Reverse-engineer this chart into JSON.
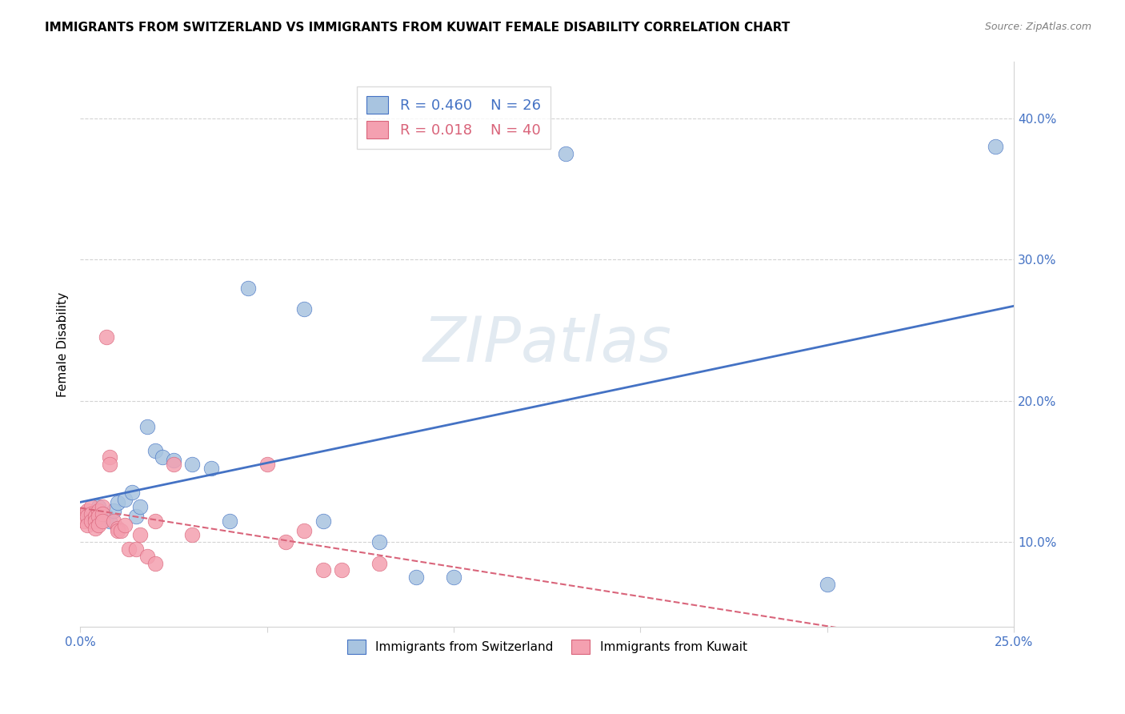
{
  "title": "IMMIGRANTS FROM SWITZERLAND VS IMMIGRANTS FROM KUWAIT FEMALE DISABILITY CORRELATION CHART",
  "source": "Source: ZipAtlas.com",
  "ylabel": "Female Disability",
  "xmin": 0.0,
  "xmax": 0.25,
  "ymin": 0.04,
  "ymax": 0.44,
  "yticks": [
    0.1,
    0.2,
    0.3,
    0.4
  ],
  "ytick_labels": [
    "10.0%",
    "20.0%",
    "30.0%",
    "40.0%"
  ],
  "xticks": [
    0.0,
    0.05,
    0.1,
    0.15,
    0.2,
    0.25
  ],
  "xtick_labels": [
    "0.0%",
    "",
    "",
    "",
    "",
    "25.0%"
  ],
  "color_swiss": "#a8c4e0",
  "color_kuwait": "#f4a0b0",
  "color_swiss_line": "#4472c4",
  "color_kuwait_line": "#d9647a",
  "watermark": "ZIPatlas",
  "swiss_x": [
    0.002,
    0.005,
    0.007,
    0.008,
    0.009,
    0.01,
    0.012,
    0.014,
    0.015,
    0.016,
    0.018,
    0.02,
    0.022,
    0.025,
    0.03,
    0.035,
    0.04,
    0.045,
    0.06,
    0.065,
    0.08,
    0.09,
    0.1,
    0.13,
    0.2,
    0.245
  ],
  "swiss_y": [
    0.12,
    0.125,
    0.118,
    0.115,
    0.122,
    0.128,
    0.13,
    0.135,
    0.118,
    0.125,
    0.182,
    0.165,
    0.16,
    0.158,
    0.155,
    0.152,
    0.115,
    0.28,
    0.265,
    0.115,
    0.1,
    0.075,
    0.075,
    0.375,
    0.07,
    0.38
  ],
  "kuwait_x": [
    0.001,
    0.001,
    0.001,
    0.002,
    0.002,
    0.002,
    0.003,
    0.003,
    0.003,
    0.004,
    0.004,
    0.004,
    0.005,
    0.005,
    0.005,
    0.006,
    0.006,
    0.006,
    0.007,
    0.008,
    0.008,
    0.009,
    0.01,
    0.01,
    0.011,
    0.012,
    0.013,
    0.015,
    0.016,
    0.018,
    0.02,
    0.02,
    0.025,
    0.03,
    0.05,
    0.055,
    0.06,
    0.065,
    0.07,
    0.08
  ],
  "kuwait_y": [
    0.12,
    0.118,
    0.115,
    0.122,
    0.118,
    0.112,
    0.125,
    0.12,
    0.115,
    0.118,
    0.115,
    0.11,
    0.122,
    0.118,
    0.112,
    0.125,
    0.12,
    0.115,
    0.245,
    0.16,
    0.155,
    0.115,
    0.11,
    0.108,
    0.108,
    0.112,
    0.095,
    0.095,
    0.105,
    0.09,
    0.085,
    0.115,
    0.155,
    0.105,
    0.155,
    0.1,
    0.108,
    0.08,
    0.08,
    0.085
  ]
}
